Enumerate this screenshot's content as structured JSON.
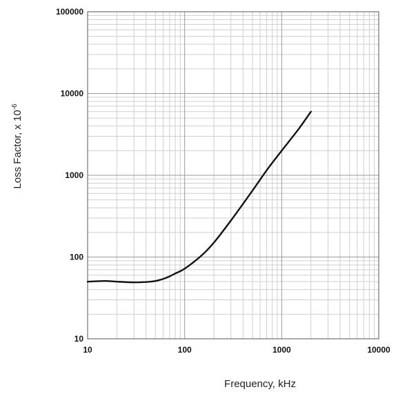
{
  "chart_data": {
    "type": "line",
    "xlabel": "Frequency, kHz",
    "ylabel": "Loss Factor, x 10",
    "ylabel_exponent": "-6",
    "x_scale": "log",
    "y_scale": "log",
    "xlim": [
      10,
      10000
    ],
    "ylim": [
      10,
      100000
    ],
    "grid": true,
    "x_ticks": [
      "10",
      "100",
      "1000",
      "10000"
    ],
    "y_ticks": [
      "10",
      "100",
      "1000",
      "10000",
      "100000"
    ],
    "series": [
      {
        "x": [
          10,
          15,
          20,
          30,
          40,
          50,
          60,
          70,
          80,
          100,
          150,
          200,
          300,
          500,
          700,
          1000,
          1500,
          2000
        ],
        "y": [
          50,
          51,
          50,
          49,
          49.5,
          51,
          54,
          58,
          63,
          72,
          105,
          150,
          280,
          650,
          1150,
          2000,
          3700,
          6000
        ]
      }
    ],
    "colors": {
      "line": "#111111",
      "grid_major": "#9a9a9a",
      "grid_minor": "#cfcfcf",
      "axis": "#555555"
    }
  }
}
